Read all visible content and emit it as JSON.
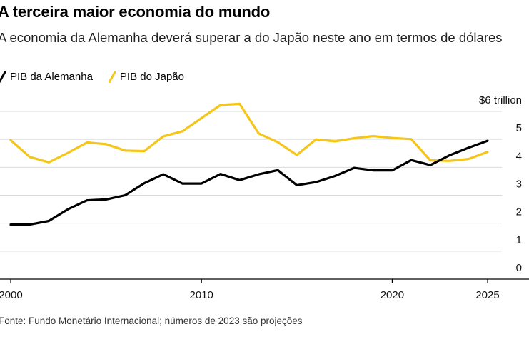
{
  "title": "A terceira maior economia do mundo",
  "subtitle": "A economia da Alemanha deverá superar a do Japão neste ano em termos de dólares",
  "source": "Fonte: Fundo Monetário Internacional; números de 2023 são projeções",
  "colors": {
    "germany": "#000000",
    "japan": "#f5c518",
    "grid": "#d9d9d9",
    "axis": "#000000"
  },
  "chart_data": {
    "type": "line",
    "title": "A terceira maior economia do mundo",
    "subtitle": "A economia da Alemanha deverá superar a do Japão neste ano em termos de dólares",
    "xlabel": "",
    "ylabel": "",
    "xlim": [
      2000,
      2026
    ],
    "ylim": [
      0,
      6
    ],
    "x_ticks": [
      2000,
      2010,
      2020,
      2025
    ],
    "x_tick_labels": [
      "2000",
      "2010",
      "2020",
      "2025"
    ],
    "y_ticks": [
      0,
      1,
      2,
      3,
      4,
      5,
      6
    ],
    "y_tick_labels": [
      "0",
      "1",
      "2",
      "3",
      "4",
      "5",
      "$6 trillion"
    ],
    "grid": "horizontal",
    "legend_position": "top-left",
    "x": [
      2000,
      2001,
      2002,
      2003,
      2004,
      2005,
      2006,
      2007,
      2008,
      2009,
      2010,
      2011,
      2012,
      2013,
      2014,
      2015,
      2016,
      2017,
      2018,
      2019,
      2020,
      2021,
      2022,
      2023,
      2024,
      2025
    ],
    "series": [
      {
        "name": "PIB da Alemanha",
        "values": [
          1.95,
          1.95,
          2.08,
          2.5,
          2.82,
          2.85,
          3.0,
          3.43,
          3.75,
          3.42,
          3.42,
          3.76,
          3.54,
          3.75,
          3.9,
          3.36,
          3.47,
          3.69,
          3.98,
          3.89,
          3.89,
          4.26,
          4.08,
          4.43,
          4.7,
          4.95
        ]
      },
      {
        "name": "PIB do Japão",
        "values": [
          4.97,
          4.37,
          4.18,
          4.52,
          4.89,
          4.83,
          4.6,
          4.58,
          5.11,
          5.29,
          5.76,
          6.23,
          6.27,
          5.21,
          4.9,
          4.44,
          5.0,
          4.93,
          5.04,
          5.12,
          5.05,
          5.01,
          4.25,
          4.23,
          4.3,
          4.55
        ]
      }
    ]
  }
}
